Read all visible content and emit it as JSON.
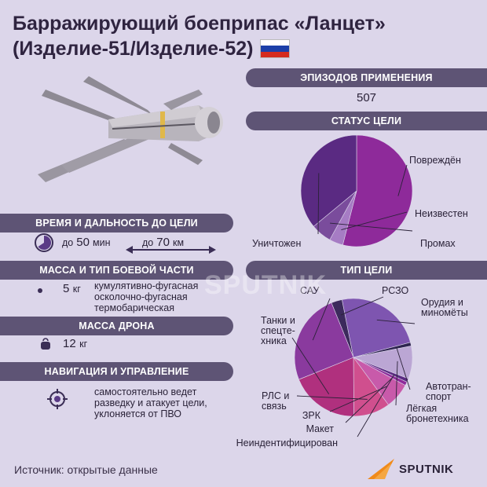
{
  "title": {
    "line1": "Барражирующий боеприпас «Ланцет»",
    "line2": "(Изделие-51/Изделие-52)",
    "flag_colors": [
      "#ffffff",
      "#1c3fa8",
      "#d52b1e"
    ]
  },
  "episodes": {
    "header": "ЭПИЗОДОВ ПРИМЕНЕНИЯ",
    "value": "507"
  },
  "time_range": {
    "header": "ВРЕМЯ И ДАЛЬНОСТЬ ДО ЦЕЛИ",
    "time_prefix": "до",
    "time_value": "50",
    "time_unit": "мин",
    "range_prefix": "до",
    "range_value": "70",
    "range_unit": "км"
  },
  "warhead": {
    "header": "МАССА И ТИП БОЕВОЙ ЧАСТИ",
    "mass_value": "5",
    "mass_unit": "кг",
    "types": [
      "кумулятивно-фугасная",
      "осколочно-фугасная",
      "термобарическая"
    ]
  },
  "drone_mass": {
    "header": "МАССА ДРОНА",
    "value": "12",
    "unit": "кг"
  },
  "navigation": {
    "header": "НАВИГАЦИЯ И УПРАВЛЕНИЕ",
    "lines": [
      "самостоятельно ведет",
      "разведку и атакует цели,",
      "уклоняется от ПВО"
    ]
  },
  "source": "Источник: открытые данные",
  "brand": "SPUTNIK",
  "watermark": "SPUTNIK",
  "chart_data": [
    {
      "type": "pie",
      "title": "СТАТУС ЦЕЛИ",
      "categories": [
        "Повреждён",
        "Неизвестен",
        "Промах",
        "Уничтожен"
      ],
      "values": [
        54,
        4,
        6,
        36
      ],
      "colors": [
        "#8e2a9a",
        "#a67cc4",
        "#7a4c9c",
        "#5a2a82"
      ]
    },
    {
      "type": "pie",
      "title": "ТИП ЦЕЛИ",
      "categories": [
        "РСЗО",
        "Орудия и минометы",
        "Автотранспорт",
        "Лёгкая бронетехника",
        "Неиндентифицирован",
        "Макет",
        "ЗРК",
        "РЛС и связь",
        "Танки и спецтехника",
        "САУ"
      ],
      "labels": [
        "РСЗО",
        "Орудия и\nминомёты",
        "Автотран-\nспорт",
        "Лёгкая\nбронетехника",
        "Неиндентифицирован",
        "Макет",
        "ЗРК",
        "РЛС и\nсвязь",
        "Танки и\nспецте-\nхника",
        "САУ"
      ],
      "values": [
        3,
        24,
        1,
        9,
        1,
        1,
        7,
        10,
        19,
        25
      ],
      "colors": [
        "#3c2a5c",
        "#7e55b0",
        "#2e2450",
        "#bba6d4",
        "#5a2a82",
        "#8e2a9a",
        "#c85aaa",
        "#d04f8e",
        "#b0307e",
        "#8a3a9e"
      ]
    }
  ]
}
